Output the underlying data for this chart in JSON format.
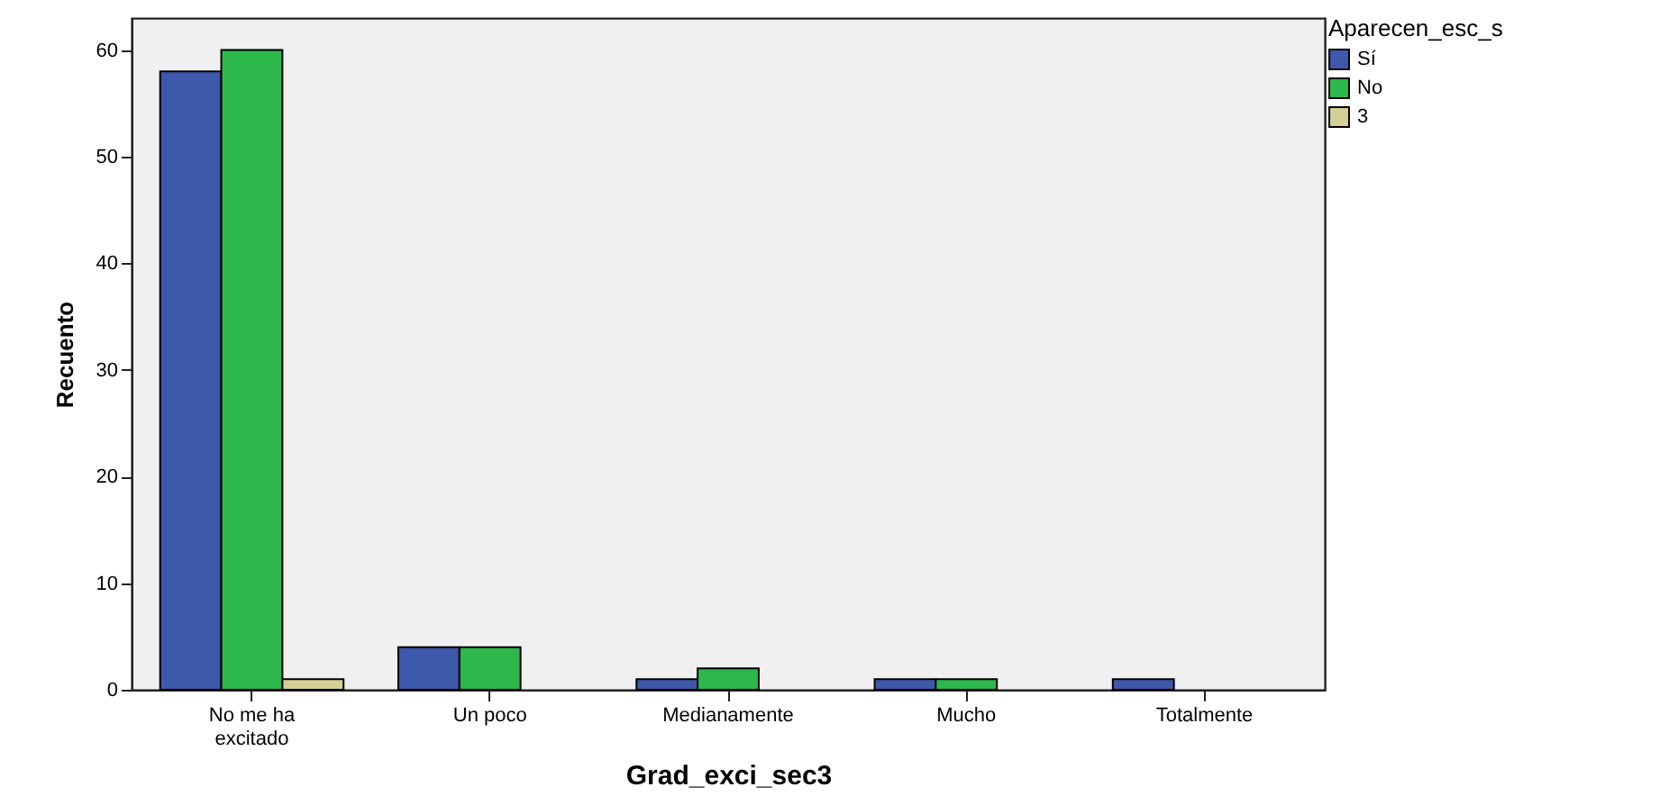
{
  "chart_data": {
    "type": "bar",
    "xlabel": "Grad_exci_sec3",
    "ylabel": "Recuento",
    "legend_title": "Aparecen_esc_s",
    "categories": [
      "No me ha excitado",
      "Un poco",
      "Medianamente",
      "Mucho",
      "Totalmente"
    ],
    "series": [
      {
        "name": "Sí",
        "color": "#3e58ac",
        "values": [
          58,
          4,
          1,
          1,
          1
        ]
      },
      {
        "name": "No",
        "color": "#2db84b",
        "values": [
          60,
          4,
          2,
          1,
          null
        ]
      },
      {
        "name": "3",
        "color": "#d4cf96",
        "values": [
          1,
          null,
          null,
          null,
          null
        ]
      }
    ],
    "ylim": [
      0,
      63
    ],
    "yticks": [
      0,
      10,
      20,
      30,
      40,
      50,
      60
    ],
    "legend": "top right"
  }
}
